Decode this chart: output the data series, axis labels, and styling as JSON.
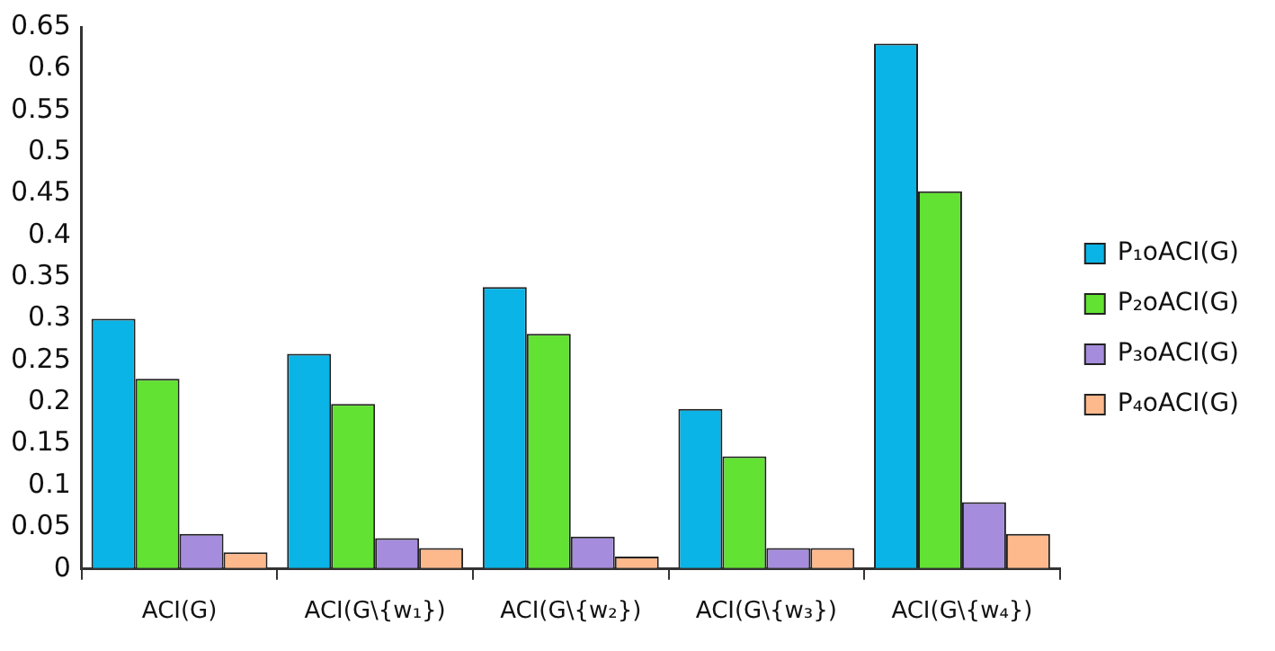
{
  "chart_data": {
    "type": "bar",
    "categories": [
      "ACI(G)",
      "ACI(G\\{w₁})",
      "ACI(G\\{w₂})",
      "ACI(G\\{w₃})",
      "ACI(G\\{w₄})"
    ],
    "series": [
      {
        "name": "P₁oACI(G)",
        "color": "#0ab4e6",
        "values": [
          0.3,
          0.258,
          0.338,
          0.192,
          0.63
        ]
      },
      {
        "name": "P₂oACI(G)",
        "color": "#62e232",
        "values": [
          0.228,
          0.198,
          0.282,
          0.135,
          0.453
        ]
      },
      {
        "name": "P₃oACI(G)",
        "color": "#a58cdc",
        "values": [
          0.042,
          0.037,
          0.039,
          0.025,
          0.08
        ]
      },
      {
        "name": "P₄oACI(G)",
        "color": "#fdb88c",
        "values": [
          0.02,
          0.025,
          0.015,
          0.025,
          0.042
        ]
      }
    ],
    "ylim": [
      0,
      0.65
    ],
    "yticks": [
      0,
      0.05,
      0.1,
      0.15,
      0.2,
      0.25,
      0.3,
      0.35,
      0.4,
      0.45,
      0.5,
      0.55,
      0.6,
      0.65
    ],
    "grid": false,
    "legend": "right"
  }
}
